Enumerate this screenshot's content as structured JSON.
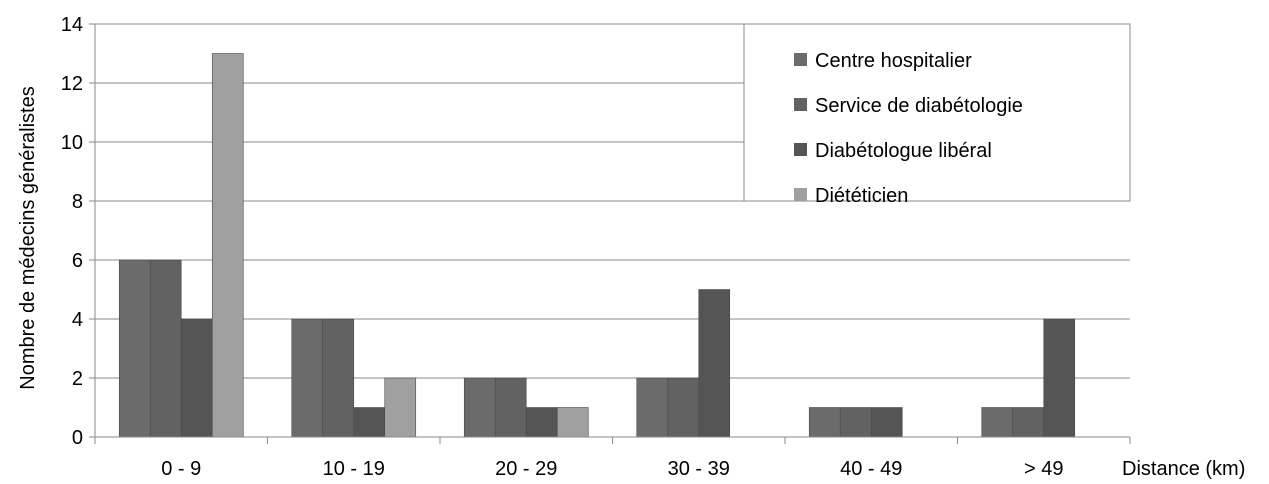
{
  "chart_data": {
    "type": "bar",
    "title": "",
    "xlabel": "Distance (km)",
    "ylabel": "Nombre de médecins  généralistes",
    "categories": [
      "0 - 9",
      "10 - 19",
      "20 - 29",
      "30 - 39",
      "40 - 49",
      "> 49"
    ],
    "ylim": [
      0,
      14
    ],
    "yticks": [
      0,
      2,
      4,
      6,
      8,
      10,
      12,
      14
    ],
    "grid": true,
    "legend_position": "top-right",
    "series": [
      {
        "name": "Centre hospitalier",
        "color": "#6b6b6b",
        "values": [
          6,
          4,
          2,
          2,
          1,
          1
        ]
      },
      {
        "name": "Service de diabétologie",
        "color": "#626262",
        "values": [
          6,
          4,
          2,
          2,
          1,
          1
        ]
      },
      {
        "name": "Diabétologue libéral",
        "color": "#555555",
        "values": [
          4,
          1,
          1,
          5,
          1,
          4
        ]
      },
      {
        "name": "Diététicien",
        "color": "#a0a0a0",
        "values": [
          13,
          2,
          1,
          0,
          0,
          0
        ]
      }
    ]
  }
}
